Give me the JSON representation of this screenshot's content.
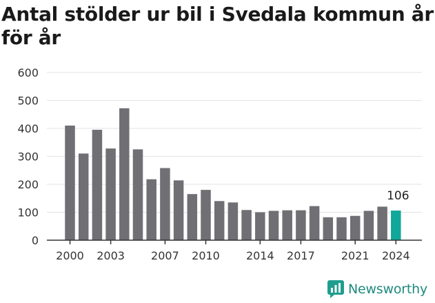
{
  "title": "Antal stölder ur bil i Svedala kommun år för år",
  "brand": {
    "name": "Newsworthy",
    "color": "#1f9e90"
  },
  "colors": {
    "bar": "#706f74",
    "highlight": "#11a79a",
    "grid": "#e3e3e3",
    "axis": "#333333"
  },
  "chart_data": {
    "type": "bar",
    "categories": [
      "2000",
      "2001",
      "2002",
      "2003",
      "2004",
      "2005",
      "2006",
      "2007",
      "2008",
      "2009",
      "2010",
      "2011",
      "2012",
      "2013",
      "2014",
      "2015",
      "2016",
      "2017",
      "2018",
      "2019",
      "2020",
      "2021",
      "2022",
      "2023",
      "2024"
    ],
    "values": [
      410,
      310,
      395,
      328,
      472,
      325,
      218,
      258,
      214,
      165,
      180,
      140,
      135,
      108,
      100,
      105,
      107,
      107,
      122,
      82,
      82,
      87,
      105,
      120,
      106
    ],
    "x_tick_labels": [
      "2000",
      "2003",
      "2007",
      "2010",
      "2014",
      "2017",
      "2021",
      "2024"
    ],
    "y_ticks": [
      0,
      100,
      200,
      300,
      400,
      500,
      600
    ],
    "ylim": [
      0,
      600
    ],
    "highlight_category": "2024",
    "highlight_label": "106",
    "grid": true
  }
}
